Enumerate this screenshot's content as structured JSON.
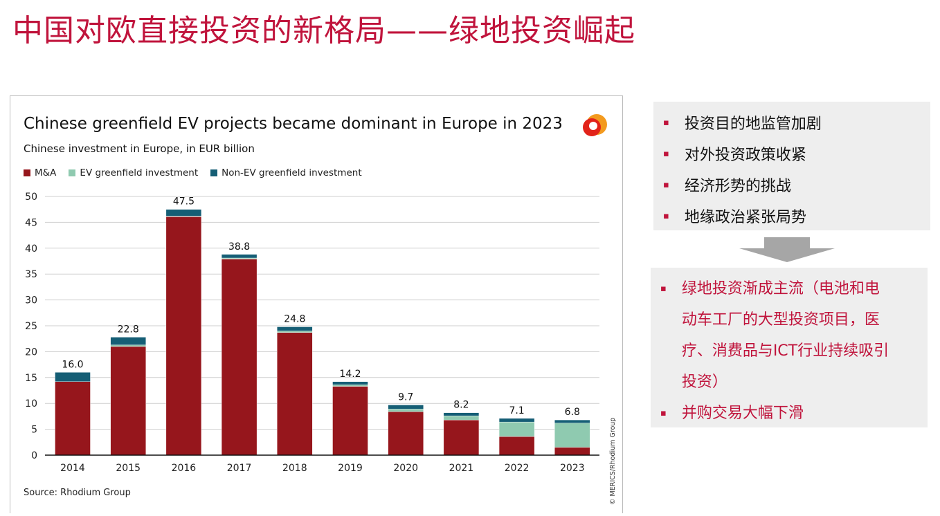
{
  "title": "中国对欧直接投资的新格局——绿地投资崛起",
  "chart_data": {
    "type": "bar",
    "stacked": true,
    "title": "Chinese greenfield EV projects became dominant in Europe in 2023",
    "subtitle": "Chinese investment in Europe, in EUR billion",
    "categories": [
      "2014",
      "2015",
      "2016",
      "2017",
      "2018",
      "2019",
      "2020",
      "2021",
      "2022",
      "2023"
    ],
    "series": [
      {
        "name": "M&A",
        "color": "#96161c",
        "values": [
          14.2,
          21.0,
          46.1,
          37.9,
          23.7,
          13.3,
          8.4,
          6.8,
          3.6,
          1.5
        ]
      },
      {
        "name": "EV greenfield investment",
        "color": "#8fcab0",
        "values": [
          0,
          0.3,
          0.1,
          0.2,
          0.3,
          0.3,
          0.5,
          0.8,
          2.8,
          4.7
        ]
      },
      {
        "name": "Non-EV greenfield investment",
        "color": "#155e75",
        "values": [
          1.8,
          1.5,
          1.3,
          0.7,
          0.8,
          0.6,
          0.8,
          0.6,
          0.7,
          0.6
        ]
      }
    ],
    "totals": [
      "16.0",
      "22.8",
      "47.5",
      "38.8",
      "24.8",
      "14.2",
      "9.7",
      "8.2",
      "7.1",
      "6.8"
    ],
    "yticks": [
      0,
      5,
      10,
      15,
      20,
      25,
      30,
      35,
      40,
      45,
      50
    ],
    "ylim": [
      0,
      50
    ],
    "grid": true,
    "legend": "top-left",
    "source": "Source: Rhodium Group",
    "credit": "© MERICS/Rhodium Group"
  },
  "drivers": [
    "投资目的地监管加剧",
    "对外投资政策收紧",
    "经济形势的挑战",
    "地缘政治紧张局势"
  ],
  "outcomes": [
    {
      "lines": [
        "绿地投资渐成主流（电池和电",
        "动车工厂的大型投资项目，医",
        "疗、消费品与ICT行业持续吸引",
        "投资）"
      ]
    },
    {
      "lines": [
        "并购交易大幅下滑"
      ]
    }
  ],
  "bullet": "▪"
}
